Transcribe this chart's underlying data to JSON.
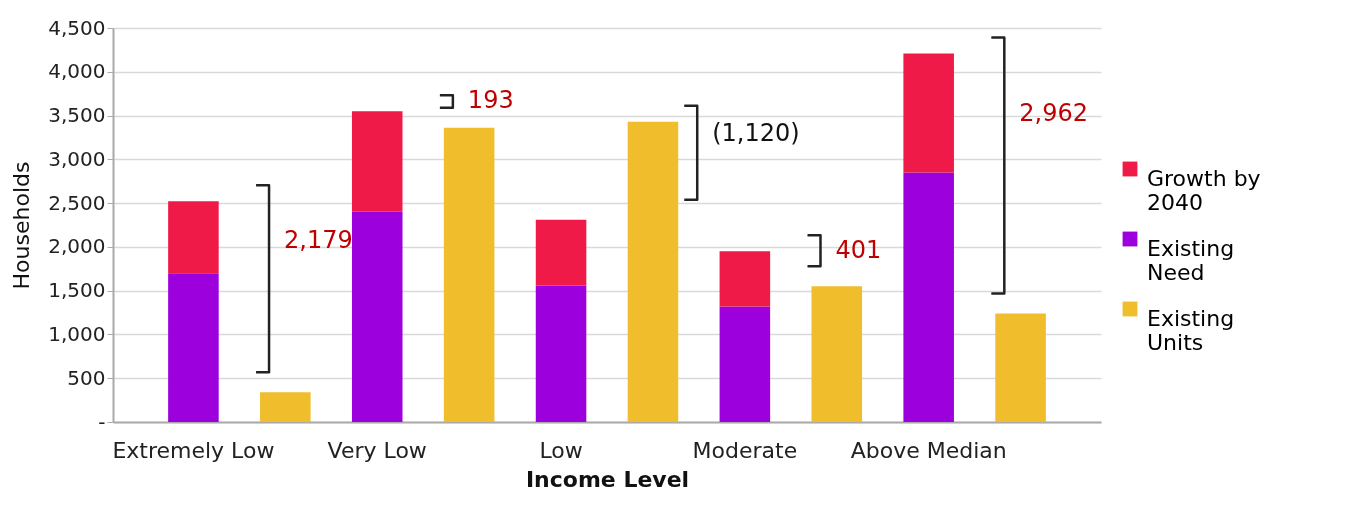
{
  "chart_data": {
    "type": "bar",
    "stacked": true,
    "xlabel": "Income Level",
    "ylabel": "Households",
    "categories": [
      "Extremely Low",
      null,
      "Very Low",
      null,
      "Low",
      null,
      "Moderate",
      null,
      "Above Median",
      null
    ],
    "series": [
      {
        "name": "Existing Need",
        "color": "#9b00dd",
        "values": [
          1700,
          null,
          2400,
          null,
          1560,
          null,
          1320,
          null,
          2850,
          null
        ]
      },
      {
        "name": "Growth by 2040",
        "color": "#ef1a47",
        "values": [
          820,
          null,
          1150,
          null,
          750,
          null,
          630,
          null,
          1360,
          null
        ]
      },
      {
        "name": "Existing Units",
        "color": "#f0bd2d",
        "values": [
          null,
          340,
          null,
          3360,
          null,
          3430,
          null,
          1550,
          null,
          1240
        ]
      }
    ],
    "ylim": [
      0,
      4500
    ],
    "yticks": [
      {
        "value": 0,
        "label": "-"
      },
      500,
      {
        "value": 1000,
        "label": "1,000"
      },
      {
        "value": 1500,
        "label": "1,500"
      },
      {
        "value": 2000,
        "label": "2,000"
      },
      {
        "value": 2500,
        "label": "2,500"
      },
      {
        "value": 3000,
        "label": "3,000"
      },
      {
        "value": 3500,
        "label": "3,500"
      },
      {
        "value": 4000,
        "label": "4,000"
      },
      {
        "value": 4500,
        "label": "4,500"
      }
    ],
    "grid": "y",
    "legend": "right",
    "annotations": [
      "2,179",
      "193",
      "(1,120)",
      "401",
      "2,962"
    ]
  }
}
